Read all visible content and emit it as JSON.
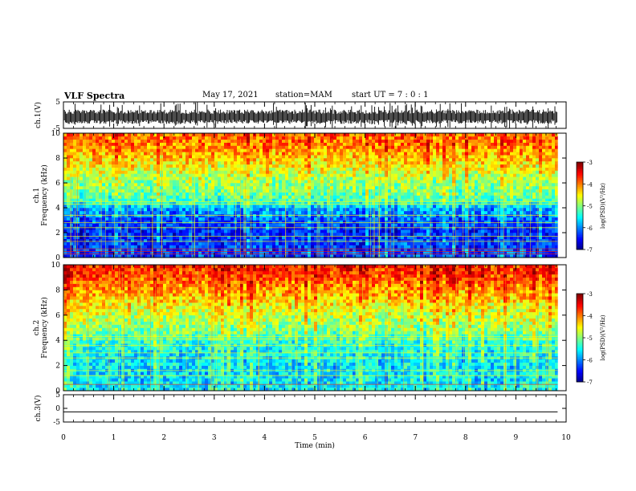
{
  "header": {
    "title": "VLF Spectra",
    "date": "May 17, 2021",
    "station": "station=MAM",
    "start_ut": "start  UT  =   7 : 0  : 1"
  },
  "chart_data": [
    {
      "type": "line",
      "name": "ch1-waveform",
      "ylabel": "ch.1(V)",
      "ylim": [
        -5,
        5
      ],
      "yticks": [
        "5",
        "-5"
      ],
      "xlim": [
        0,
        10
      ],
      "data_extent_x": [
        0,
        9.83
      ],
      "style": "dense noisy waveform, roughly -3 V to +2 V"
    },
    {
      "type": "heatmap",
      "name": "ch1-spectrogram",
      "ylabel": "ch.1\nFrequency (kHz)",
      "ylim": [
        0,
        10
      ],
      "yticks": [
        "0",
        "2",
        "4",
        "6",
        "8",
        "10"
      ],
      "xlim": [
        0,
        10
      ],
      "data_extent_x": [
        0,
        9.83
      ],
      "colorbar": {
        "label": "log(PSD)(V²/Hz)",
        "range": [
          -7,
          -3
        ],
        "ticks": [
          "-3",
          "-4",
          "-5",
          "-6",
          "-7"
        ]
      },
      "level_by_frequency_khz": [
        [
          0,
          -6.3
        ],
        [
          1,
          -6.3
        ],
        [
          2,
          -6.4
        ],
        [
          3,
          -6.2
        ],
        [
          4,
          -5.8
        ],
        [
          4.5,
          -5.3
        ],
        [
          5,
          -5.1
        ],
        [
          6,
          -4.9
        ],
        [
          7,
          -4.6
        ],
        [
          8,
          -4.3
        ],
        [
          9,
          -4.0
        ],
        [
          10,
          -3.9
        ]
      ],
      "narrowband_lines_khz": [
        0.3,
        0.5,
        0.7,
        1.3,
        1.7,
        2.4,
        2.8,
        3.4,
        4.3,
        4.5
      ]
    },
    {
      "type": "heatmap",
      "name": "ch2-spectrogram",
      "ylabel": "ch.2\nFrequency (kHz)",
      "ylim": [
        0,
        10
      ],
      "yticks": [
        "0",
        "2",
        "4",
        "6",
        "8",
        "10"
      ],
      "xlim": [
        0,
        10
      ],
      "data_extent_x": [
        0,
        9.83
      ],
      "colorbar": {
        "label": "log(PSD)(V²/Hz)",
        "range": [
          -7,
          -3
        ],
        "ticks": [
          "-3",
          "-4",
          "-5",
          "-6",
          "-7"
        ]
      },
      "level_by_frequency_khz": [
        [
          0,
          -5.5
        ],
        [
          1,
          -5.6
        ],
        [
          2,
          -5.6
        ],
        [
          3,
          -5.5
        ],
        [
          4,
          -5.3
        ],
        [
          5,
          -4.9
        ],
        [
          6,
          -4.7
        ],
        [
          7,
          -4.4
        ],
        [
          8,
          -4.1
        ],
        [
          9,
          -3.8
        ],
        [
          10,
          -3.6
        ]
      ],
      "narrowband_lines_khz": [
        0.5,
        1.2,
        1.6,
        2.6,
        3.0,
        3.6,
        4.1,
        4.3
      ]
    },
    {
      "type": "line",
      "name": "ch3-waveform",
      "ylabel": "ch.3(V)",
      "ylim": [
        -5,
        5
      ],
      "yticks": [
        "5",
        "0",
        "-5"
      ],
      "xlim": [
        0,
        10
      ],
      "data_extent_x": [
        0,
        9.83
      ],
      "constant_value": -1.3
    }
  ],
  "xaxis": {
    "label": "Time (min)",
    "ticks": [
      "0",
      "1",
      "2",
      "3",
      "4",
      "5",
      "6",
      "7",
      "8",
      "9",
      "10"
    ]
  }
}
